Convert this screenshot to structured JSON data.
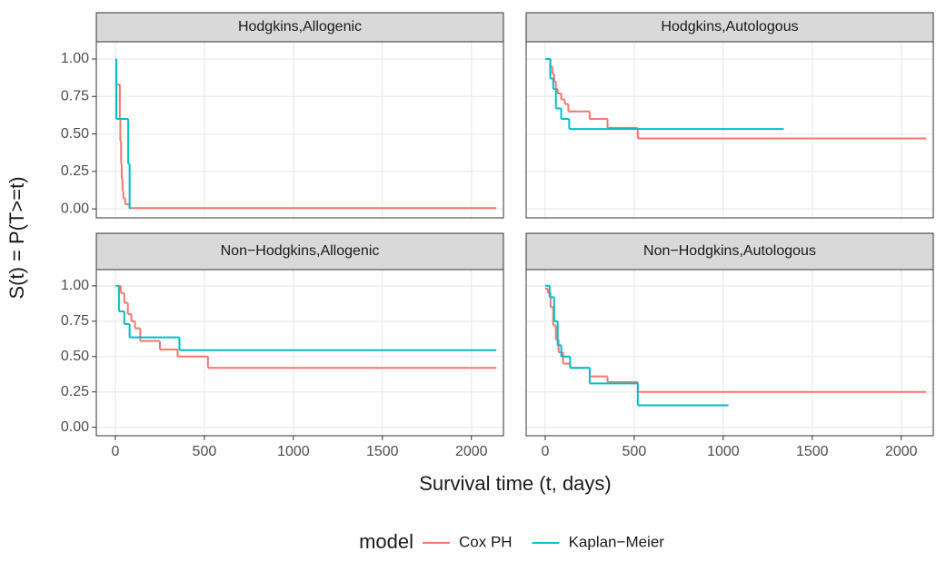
{
  "ylabel": "S(t) = P(T>=t)",
  "xlabel": "Survival time (t, days)",
  "legend_title": "model",
  "chart_data": [
    {
      "type": "step",
      "title": "Hodgkins,Allogenic",
      "xlim": [
        -107,
        2180
      ],
      "ylim": [
        -0.06,
        1.115
      ],
      "xticks": [
        0,
        500,
        1000,
        1500,
        2000
      ],
      "yticks": [
        {
          "value": 0,
          "label": "0.00"
        },
        {
          "value": 0.25,
          "label": "0.25"
        },
        {
          "value": 0.5,
          "label": "0.50"
        },
        {
          "value": 0.75,
          "label": "0.75"
        },
        {
          "value": 1,
          "label": "1.00"
        }
      ],
      "grid": true,
      "series": [
        {
          "name": "Cox PH",
          "color": "#F8766D",
          "x": [
            5,
            25,
            28,
            32,
            36,
            40,
            45,
            55,
            80,
            2140
          ],
          "values": [
            0.83,
            0.6,
            0.45,
            0.3,
            0.2,
            0.12,
            0.07,
            0.03,
            0.005,
            0.005
          ]
        },
        {
          "name": "Kaplan−Meier",
          "color": "#00BFC4",
          "x": [
            0,
            5,
            72,
            80
          ],
          "values": [
            1,
            0.6,
            0.3,
            0
          ]
        }
      ]
    },
    {
      "type": "step",
      "title": "Hodgkins,Autologous",
      "xlim": [
        -107,
        2180
      ],
      "ylim": [
        -0.06,
        1.115
      ],
      "xticks": [
        0,
        500,
        1000,
        1500,
        2000
      ],
      "yticks": [
        0,
        0.25,
        0.5,
        0.75,
        1
      ],
      "grid": true,
      "series": [
        {
          "name": "Cox PH",
          "color": "#F8766D",
          "x": [
            10,
            30,
            40,
            50,
            60,
            70,
            90,
            110,
            130,
            250,
            350,
            520,
            2140
          ],
          "values": [
            1,
            0.95,
            0.9,
            0.85,
            0.8,
            0.77,
            0.73,
            0.7,
            0.65,
            0.6,
            0.54,
            0.47,
            0.47
          ]
        },
        {
          "name": "Kaplan−Meier",
          "color": "#00BFC4",
          "x": [
            0,
            28,
            45,
            60,
            90,
            135,
            1340
          ],
          "values": [
            1,
            0.87,
            0.8,
            0.67,
            0.6,
            0.533,
            0.533
          ]
        }
      ]
    },
    {
      "type": "step",
      "title": "Non−Hodgkins,Allogenic",
      "xlim": [
        -107,
        2180
      ],
      "ylim": [
        -0.06,
        1.115
      ],
      "xticks": [
        0,
        500,
        1000,
        1500,
        2000
      ],
      "yticks": [
        {
          "value": 0,
          "label": "0.00"
        },
        {
          "value": 0.25,
          "label": "0.25"
        },
        {
          "value": 0.5,
          "label": "0.50"
        },
        {
          "value": 0.75,
          "label": "0.75"
        },
        {
          "value": 1,
          "label": "1.00"
        }
      ],
      "grid": true,
      "series": [
        {
          "name": "Cox PH",
          "color": "#F8766D",
          "x": [
            10,
            30,
            50,
            70,
            90,
            110,
            140,
            250,
            350,
            520,
            2140
          ],
          "values": [
            1,
            0.95,
            0.88,
            0.8,
            0.75,
            0.7,
            0.61,
            0.55,
            0.5,
            0.42,
            0.42
          ]
        },
        {
          "name": "Kaplan−Meier",
          "color": "#00BFC4",
          "x": [
            0,
            20,
            50,
            80,
            360,
            2140
          ],
          "values": [
            1,
            0.82,
            0.73,
            0.636,
            0.545,
            0.545
          ]
        }
      ]
    },
    {
      "type": "step",
      "title": "Non−Hodgkins,Autologous",
      "xlim": [
        -107,
        2180
      ],
      "ylim": [
        -0.06,
        1.115
      ],
      "xticks": [
        0,
        500,
        1000,
        1500,
        2000
      ],
      "yticks": [
        0,
        0.25,
        0.5,
        0.75,
        1
      ],
      "grid": true,
      "series": [
        {
          "name": "Cox PH",
          "color": "#F8766D",
          "x": [
            0,
            15,
            30,
            45,
            60,
            75,
            100,
            140,
            250,
            350,
            520,
            2140
          ],
          "values": [
            0.98,
            0.95,
            0.85,
            0.72,
            0.62,
            0.53,
            0.45,
            0.42,
            0.36,
            0.32,
            0.25,
            0.25
          ]
        },
        {
          "name": "Kaplan−Meier",
          "color": "#00BFC4",
          "x": [
            0,
            25,
            50,
            70,
            90,
            140,
            250,
            520,
            1030
          ],
          "values": [
            1,
            0.92,
            0.75,
            0.58,
            0.5,
            0.42,
            0.31,
            0.155,
            0.155
          ]
        }
      ]
    }
  ]
}
